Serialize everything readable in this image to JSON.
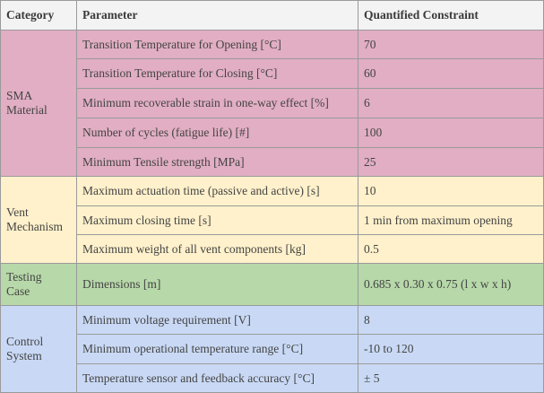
{
  "colors": {
    "header": "#f3f3f3",
    "sma": "#e1aec3",
    "vent": "#fff1cb",
    "testing": "#b7d8a9",
    "control": "#c9d9f5"
  },
  "headers": {
    "category": "Category",
    "parameter": "Parameter",
    "constraint": "Quantified Constraint"
  },
  "groups": [
    {
      "category_line1": "SMA",
      "category_line2": "Material",
      "rows": [
        {
          "parameter": "Transition Temperature for Opening [°C]",
          "constraint": "70"
        },
        {
          "parameter": "Transition Temperature for Closing [°C]",
          "constraint": "60"
        },
        {
          "parameter": "Minimum recoverable strain in one-way effect [%]",
          "constraint": "6"
        },
        {
          "parameter": "Number of cycles (fatigue life) [#]",
          "constraint": "100"
        },
        {
          "parameter": "Minimum Tensile strength [MPa]",
          "constraint": "25"
        }
      ]
    },
    {
      "category_line1": "Vent",
      "category_line2": "Mechanism",
      "rows": [
        {
          "parameter": "Maximum actuation time (passive and active) [s]",
          "constraint": "10"
        },
        {
          "parameter": "Maximum closing time [s]",
          "constraint": "1 min from maximum opening"
        },
        {
          "parameter": "Maximum weight of all vent components [kg]",
          "constraint": "0.5"
        }
      ]
    },
    {
      "category_line1": "Testing",
      "category_line2": "Case",
      "rows": [
        {
          "parameter": "Dimensions [m]",
          "constraint": "0.685 x 0.30 x 0.75  (l x w x h)"
        }
      ]
    },
    {
      "category_line1": "Control",
      "category_line2": "System",
      "rows": [
        {
          "parameter": "Minimum voltage requirement [V]",
          "constraint": "8"
        },
        {
          "parameter": "Minimum operational temperature range [°C]",
          "constraint": "-10 to 120"
        },
        {
          "parameter": "Temperature sensor and feedback accuracy [°C]",
          "constraint": "± 5"
        }
      ]
    }
  ]
}
